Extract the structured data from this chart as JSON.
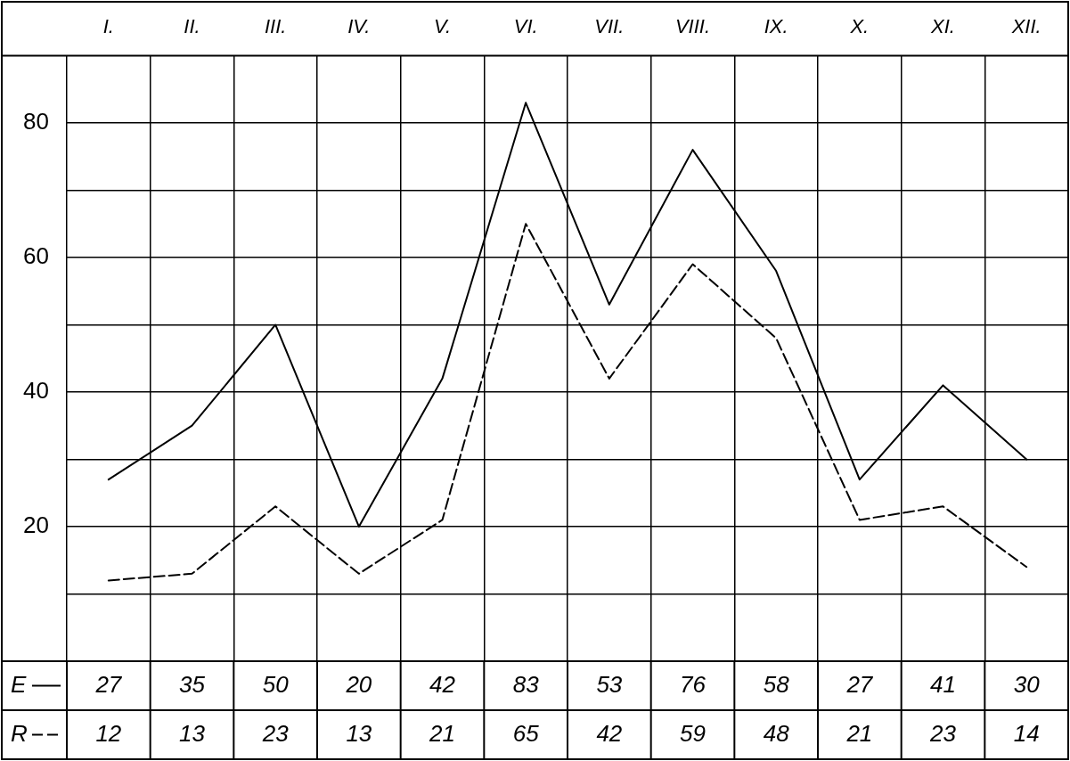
{
  "chart_data": {
    "type": "line",
    "categories": [
      "I.",
      "II.",
      "III.",
      "IV.",
      "V.",
      "VI.",
      "VII.",
      "VIII.",
      "IX.",
      "X.",
      "XI.",
      "XII."
    ],
    "series": [
      {
        "name": "E",
        "color": "#000000",
        "line_style": "solid",
        "values": [
          27,
          35,
          50,
          20,
          42,
          83,
          53,
          76,
          58,
          27,
          41,
          30
        ]
      },
      {
        "name": "R",
        "color": "#000000",
        "line_style": "dashed",
        "values": [
          12,
          13,
          23,
          13,
          21,
          65,
          42,
          59,
          48,
          21,
          23,
          14
        ]
      }
    ],
    "ylim": [
      0,
      90
    ],
    "yticks": [
      {
        "value": 10,
        "label": null
      },
      20,
      {
        "value": 30,
        "label": null
      },
      40,
      {
        "value": 50,
        "label": null
      },
      60,
      {
        "value": 70,
        "label": null
      },
      80
    ],
    "grid": true,
    "legend": "bottom left",
    "marker": "none",
    "data_labels": true
  }
}
